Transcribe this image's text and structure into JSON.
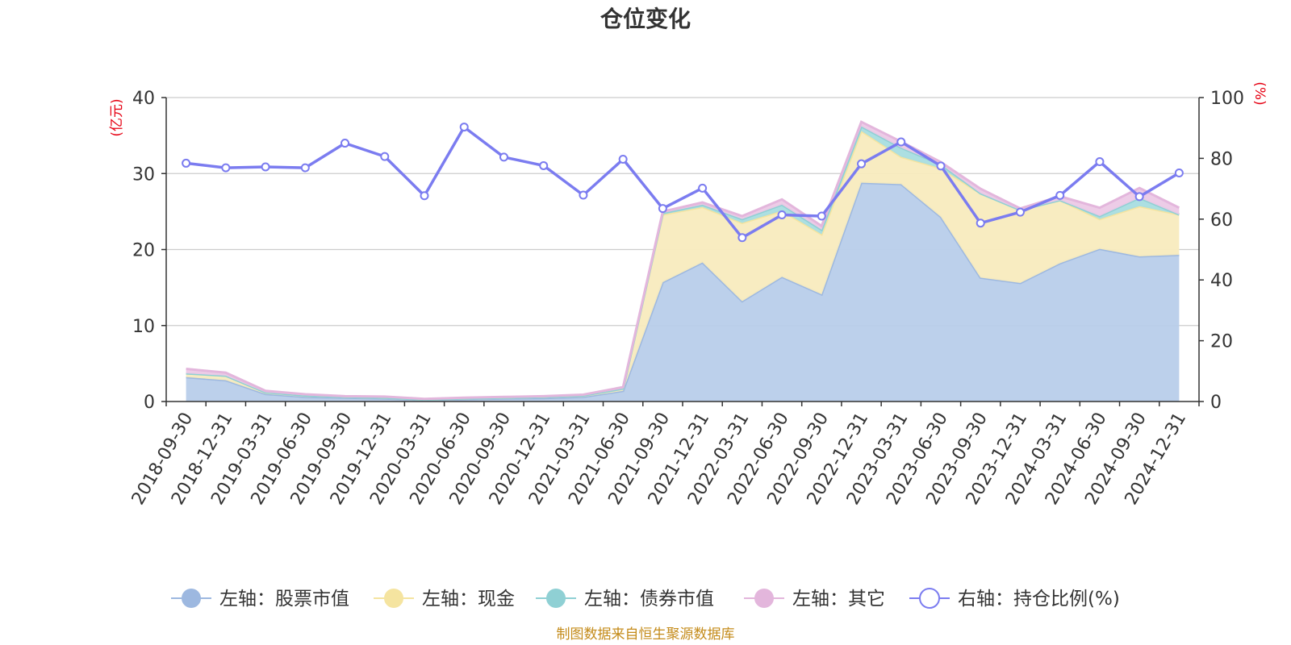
{
  "chart_data": {
    "type": "area",
    "title": "仓位变化",
    "left_axis_unit": "(亿元)",
    "right_axis_unit": "(%)",
    "left_ylim": [
      0,
      40
    ],
    "left_ticks": [
      "0",
      "10",
      "20",
      "30",
      "40"
    ],
    "right_ylim": [
      0,
      100
    ],
    "right_ticks": [
      "0",
      "20",
      "40",
      "60",
      "80",
      "100"
    ],
    "grid": true,
    "legend_position": "bottom",
    "source": "制图数据来自恒生聚源数据库",
    "categories": [
      "2018-09-30",
      "2018-12-31",
      "2019-03-31",
      "2019-06-30",
      "2019-09-30",
      "2019-12-31",
      "2020-03-31",
      "2020-06-30",
      "2020-09-30",
      "2020-12-31",
      "2021-03-31",
      "2021-06-30",
      "2021-09-30",
      "2021-12-31",
      "2022-03-31",
      "2022-06-30",
      "2022-09-30",
      "2022-12-31",
      "2023-03-31",
      "2023-06-30",
      "2023-09-30",
      "2023-12-31",
      "2024-03-31",
      "2024-06-30",
      "2024-09-30",
      "2024-12-31"
    ],
    "series": [
      {
        "name": "左轴：股票市值",
        "axis": "left",
        "kind": "stacked-area",
        "color": "#9db8e0",
        "fill": "#b8cdea",
        "values": [
          3.2,
          2.8,
          1.0,
          0.6,
          0.5,
          0.4,
          0.2,
          0.3,
          0.4,
          0.45,
          0.6,
          1.4,
          15.7,
          18.3,
          13.2,
          16.4,
          14.1,
          28.8,
          28.6,
          24.3,
          16.3,
          15.6,
          18.2,
          20.1,
          19.1,
          19.3
        ]
      },
      {
        "name": "左轴：现金",
        "axis": "left",
        "kind": "stacked-area",
        "color": "#f5e4a0",
        "fill": "#f8ebbe",
        "values": [
          0.5,
          0.6,
          0.2,
          0.2,
          0.1,
          0.1,
          0.05,
          0.1,
          0.1,
          0.15,
          0.2,
          0.3,
          8.9,
          7.3,
          10.3,
          8.7,
          7.9,
          6.8,
          3.6,
          6.4,
          11.1,
          9.6,
          8.3,
          3.9,
          6.6,
          5.3
        ]
      },
      {
        "name": "左轴：债券市值",
        "axis": "left",
        "kind": "stacked-area",
        "color": "#8fd0d4",
        "fill": "#a8dde0",
        "values": [
          0,
          0,
          0,
          0,
          0,
          0,
          0,
          0,
          0,
          0,
          0,
          0,
          0.2,
          0.3,
          0.5,
          0.8,
          0.6,
          0.6,
          1.2,
          0.5,
          0,
          0,
          0,
          0.4,
          1.1,
          0
        ]
      },
      {
        "name": "左轴：其它",
        "axis": "left",
        "kind": "stacked-area",
        "color": "#e3b6dc",
        "fill": "#ecc9e6",
        "values": [
          0.6,
          0.4,
          0.2,
          0.15,
          0.1,
          0.15,
          0.1,
          0.1,
          0.1,
          0.1,
          0.1,
          0.2,
          0.2,
          0.3,
          0.4,
          0.7,
          0.5,
          0.6,
          0.8,
          0.3,
          0.6,
          0.2,
          0.5,
          1.1,
          1.3,
          0.9
        ]
      },
      {
        "name": "右轴：持仓比例(%)",
        "axis": "right",
        "kind": "line",
        "color": "#7b7cf0",
        "values": [
          78.4,
          76.9,
          77.2,
          76.9,
          85.0,
          80.6,
          67.7,
          90.3,
          80.4,
          77.6,
          67.9,
          79.7,
          63.5,
          70.2,
          53.9,
          61.4,
          61.0,
          78.2,
          85.4,
          77.5,
          58.7,
          62.3,
          67.8,
          78.9,
          67.4,
          75.2
        ]
      }
    ]
  }
}
